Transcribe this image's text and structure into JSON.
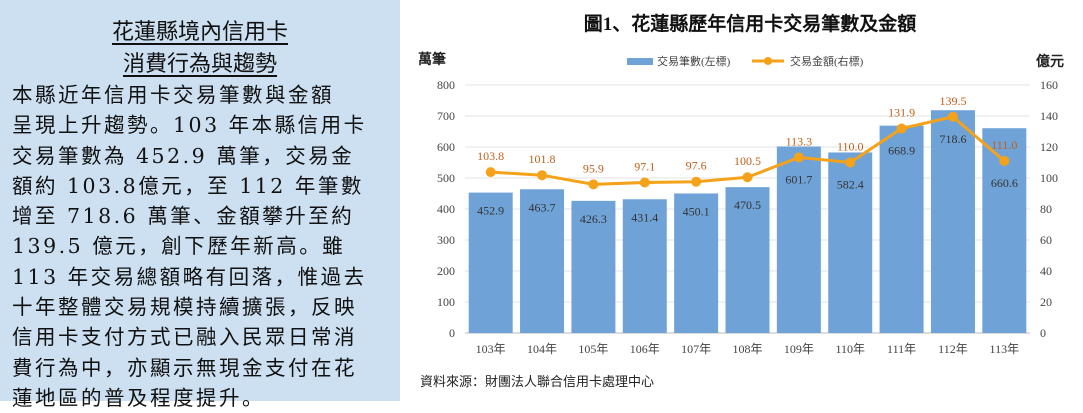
{
  "panel": {
    "title_lines": [
      "花蓮縣境內信用卡",
      "消費行為與趨勢"
    ],
    "body_lines": [
      "本縣近年信用卡交易筆數與金額",
      "呈現上升趨勢。103 年本縣信用卡",
      "交易筆數為 452.9 萬筆，交易金",
      "額約 103.8億元，至 112 年筆數",
      "增至 718.6 萬筆、金額攀升至約",
      "139.5 億元，創下歷年新高。雖",
      "113 年交易總額略有回落，惟過去",
      "十年整體交易規模持續擴張，反映",
      "信用卡支付方式已融入民眾日常消",
      "費行為中，亦顯示無現金支付在花",
      "蓮地區的普及程度提升。"
    ]
  },
  "chart_data": {
    "type": "bar+line",
    "title": "圖1、花蓮縣歷年信用卡交易筆數及金額",
    "categories": [
      "103年",
      "104年",
      "105年",
      "106年",
      "107年",
      "108年",
      "109年",
      "110年",
      "111年",
      "112年",
      "113年"
    ],
    "series": [
      {
        "name": "交易筆數(左標)",
        "type": "bar",
        "axis": "left",
        "color": "#6fa3d8",
        "values": [
          452.9,
          463.7,
          426.3,
          431.4,
          450.1,
          470.5,
          601.7,
          582.4,
          668.9,
          718.6,
          660.6
        ]
      },
      {
        "name": "交易金額(右標)",
        "type": "line",
        "axis": "right",
        "color": "#f5a21b",
        "values": [
          103.8,
          101.8,
          95.9,
          97.1,
          97.6,
          100.5,
          113.3,
          110.0,
          131.9,
          139.5,
          111.0
        ]
      }
    ],
    "ylabel_left": "萬筆",
    "ylabel_right": "億元",
    "ylim_left": [
      0,
      800
    ],
    "yticks_left": [
      0,
      100,
      200,
      300,
      400,
      500,
      600,
      700,
      800
    ],
    "ylim_right": [
      0,
      160
    ],
    "yticks_right": [
      0,
      20,
      40,
      60,
      80,
      100,
      120,
      140,
      160
    ],
    "grid": true,
    "legend": "top-center",
    "line_label_color": "#c0601a",
    "source": "資料來源：財團法人聯合信用卡處理中心"
  }
}
